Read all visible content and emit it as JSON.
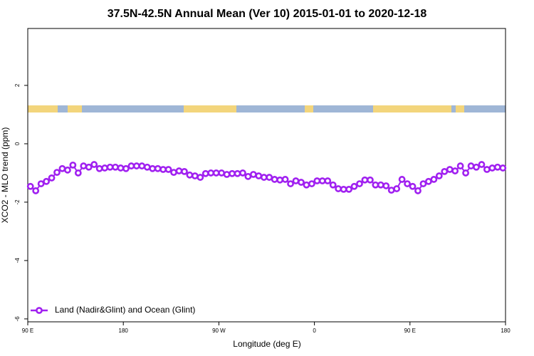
{
  "chart_data": {
    "type": "line",
    "title": "37.5N-42.5N Annual Mean (Ver 10)   2015-01-01 to 2020-12-18",
    "x_label": "Longitude (deg E)",
    "y_label": "XCO2 - MLO trend (ppm)",
    "x": [
      92.5,
      97.5,
      102.5,
      107.5,
      112.5,
      117.5,
      122.5,
      127.5,
      132.5,
      137.5,
      142.5,
      147.5,
      152.5,
      157.5,
      162.5,
      167.5,
      172.5,
      177.5,
      182.5,
      187.5,
      192.5,
      197.5,
      202.5,
      207.5,
      212.5,
      217.5,
      222.5,
      227.5,
      232.5,
      237.5,
      242.5,
      247.5,
      252.5,
      257.5,
      262.5,
      267.5,
      272.5,
      277.5,
      282.5,
      287.5,
      292.5,
      297.5,
      302.5,
      307.5,
      312.5,
      317.5,
      322.5,
      327.5,
      332.5,
      337.5,
      342.5,
      347.5,
      352.5,
      357.5,
      362.5,
      367.5,
      372.5,
      377.5,
      382.5,
      387.5,
      392.5,
      397.5,
      402.5,
      407.5,
      412.5,
      417.5,
      422.5,
      427.5,
      432.5,
      437.5,
      442.5,
      447.5,
      452.5,
      457.5,
      462.5,
      467.5,
      472.5,
      477.5,
      482.5,
      487.5,
      492.5,
      497.5,
      502.5,
      507.5,
      512.5,
      517.5,
      522.5,
      527.5,
      532.5,
      537.5
    ],
    "series": [
      {
        "name": "Land (Nadir&Glint) and Ocean (Glint)",
        "color": "#a020f0",
        "values": [
          -1.46,
          -1.61,
          -1.37,
          -1.29,
          -1.17,
          -0.98,
          -0.85,
          -0.9,
          -0.73,
          -1.0,
          -0.76,
          -0.8,
          -0.71,
          -0.85,
          -0.83,
          -0.8,
          -0.8,
          -0.83,
          -0.85,
          -0.76,
          -0.76,
          -0.76,
          -0.8,
          -0.85,
          -0.85,
          -0.88,
          -0.88,
          -0.98,
          -0.93,
          -0.95,
          -1.07,
          -1.1,
          -1.15,
          -1.02,
          -1.0,
          -1.0,
          -1.0,
          -1.05,
          -1.02,
          -1.02,
          -1.0,
          -1.12,
          -1.05,
          -1.1,
          -1.15,
          -1.15,
          -1.22,
          -1.24,
          -1.22,
          -1.37,
          -1.27,
          -1.32,
          -1.41,
          -1.37,
          -1.27,
          -1.27,
          -1.27,
          -1.41,
          -1.54,
          -1.56,
          -1.56,
          -1.46,
          -1.37,
          -1.24,
          -1.24,
          -1.41,
          -1.41,
          -1.44,
          -1.59,
          -1.54,
          -1.22,
          -1.37,
          -1.46,
          -1.61,
          -1.37,
          -1.29,
          -1.22,
          -1.1,
          -0.95,
          -0.88,
          -0.93,
          -0.76,
          -1.0,
          -0.76,
          -0.8,
          -0.71,
          -0.88,
          -0.83,
          -0.8,
          -0.83
        ]
      }
    ],
    "xlim": [
      90,
      540
    ],
    "xticks": [
      {
        "value": 90,
        "label": "90 E"
      },
      180,
      {
        "value": 270,
        "label": "90 W"
      },
      {
        "value": 360,
        "label": "0"
      },
      {
        "value": 450,
        "label": "90 E"
      },
      {
        "value": 540,
        "label": "180"
      }
    ],
    "ylim": [
      -6.1,
      3.95
    ],
    "yticks": [
      -6,
      -4,
      -2,
      0,
      2
    ],
    "legend": "bottom-left"
  }
}
